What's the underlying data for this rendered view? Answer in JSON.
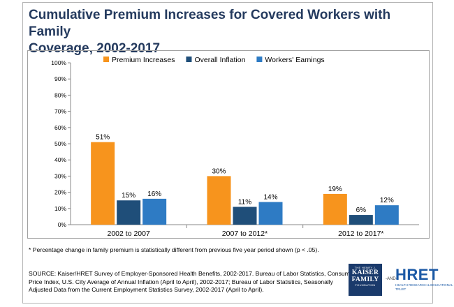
{
  "title_line1": "Cumulative Premium Increases for Covered Workers with Family",
  "title_line2": "Coverage, 2002-2017",
  "footnote": "* Percentage change in family premium is statistically different from previous five year period shown (p < .05).",
  "source": "SOURCE:  Kaiser/HRET Survey of Employer-Sponsored Health Benefits, 2002-2017. Bureau of Labor Statistics, Consumer Price Index, U.S. City Average of Annual Inflation (April to April), 2002-2017; Bureau of Labor Statistics, Seasonally Adjusted Data from the Current Employment Statistics Survey, 2002-2017 (April to April).",
  "logos": {
    "kff_top": "THE HENRY J.",
    "kff_line1": "KAISER",
    "kff_line2": "FAMILY",
    "kff_bottom": "FOUNDATION",
    "and_text": "-AND-",
    "hret_word": "HRET",
    "hret_sub": "HEALTH RESEARCH & EDUCATIONAL TRUST"
  },
  "chart_data": {
    "type": "bar",
    "categories": [
      "2002 to 2007",
      "2007 to 2012*",
      "2012 to 2017*"
    ],
    "series": [
      {
        "name": "Premium Increases",
        "values": [
          51,
          30,
          19
        ],
        "color": "#f7941d",
        "labels": [
          "51%",
          "30%",
          "19%"
        ]
      },
      {
        "name": "Overall Inflation",
        "values": [
          15,
          11,
          6
        ],
        "color": "#1f4e79",
        "labels": [
          "15%",
          "11%",
          "6%"
        ]
      },
      {
        "name": "Workers' Earnings",
        "values": [
          16,
          14,
          12
        ],
        "color": "#2e7bc4",
        "labels": [
          "16%",
          "14%",
          "12%"
        ]
      }
    ],
    "ylim": [
      0,
      100
    ],
    "yticks": [
      "0%",
      "10%",
      "20%",
      "30%",
      "40%",
      "50%",
      "60%",
      "70%",
      "80%",
      "90%",
      "100%"
    ],
    "legend_position": "top",
    "grid": false
  }
}
